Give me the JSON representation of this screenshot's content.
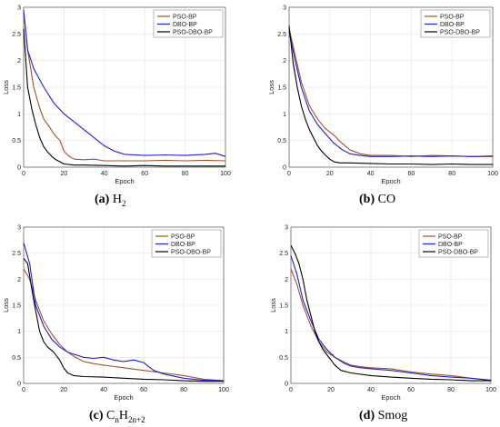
{
  "chart_data": [
    {
      "type": "line",
      "caption_letter": "(a)",
      "caption_base": "H",
      "caption_sub": "2",
      "xlabel": "Epoch",
      "ylabel": "Loss",
      "xlim": [
        0,
        100
      ],
      "ylim": [
        0,
        3
      ],
      "xticks": [
        0,
        20,
        40,
        60,
        80,
        100
      ],
      "yticks": [
        0,
        0.5,
        1,
        1.5,
        2,
        2.5,
        3
      ],
      "ytick_labels": [
        "0",
        "0.5",
        "1",
        "1.5",
        "2",
        "2.5",
        "3"
      ],
      "grid": true,
      "legend": "top-right",
      "colors": {
        "PSO-BP": "#a0522d",
        "DBO-BP": "#2020d0",
        "PSO-DBO-BP": "#000000"
      },
      "series": [
        {
          "name": "PSO-BP",
          "x": [
            0,
            2,
            5,
            8,
            10,
            12,
            15,
            18,
            20,
            22,
            25,
            30,
            35,
            40,
            50,
            60,
            70,
            80,
            90,
            100
          ],
          "values": [
            2.9,
            2.2,
            1.5,
            1.1,
            0.9,
            0.8,
            0.62,
            0.5,
            0.3,
            0.22,
            0.15,
            0.14,
            0.15,
            0.12,
            0.12,
            0.12,
            0.13,
            0.12,
            0.13,
            0.12
          ]
        },
        {
          "name": "DBO-BP",
          "x": [
            0,
            2,
            5,
            10,
            15,
            20,
            25,
            30,
            35,
            40,
            45,
            50,
            60,
            70,
            80,
            90,
            95,
            100
          ],
          "values": [
            2.95,
            2.2,
            1.85,
            1.5,
            1.2,
            1.0,
            0.85,
            0.7,
            0.55,
            0.4,
            0.3,
            0.24,
            0.22,
            0.23,
            0.22,
            0.24,
            0.26,
            0.2
          ]
        },
        {
          "name": "PSO-DBO-BP",
          "x": [
            0,
            2,
            4,
            6,
            8,
            10,
            12,
            14,
            16,
            18,
            20,
            25,
            30,
            40,
            50,
            60,
            70,
            80,
            90,
            100
          ],
          "values": [
            2.6,
            1.5,
            1.1,
            0.8,
            0.55,
            0.38,
            0.28,
            0.2,
            0.14,
            0.1,
            0.06,
            0.04,
            0.04,
            0.03,
            0.02,
            0.03,
            0.02,
            0.02,
            0.02,
            0.02
          ]
        }
      ]
    },
    {
      "type": "line",
      "caption_letter": "(b)",
      "caption_base": "CO",
      "caption_sub": "",
      "xlabel": "Epoch",
      "ylabel": "Loss",
      "xlim": [
        0,
        100
      ],
      "ylim": [
        0,
        3
      ],
      "xticks": [
        0,
        20,
        40,
        60,
        80,
        100
      ],
      "yticks": [
        0,
        0.5,
        1,
        1.5,
        2,
        2.5,
        3
      ],
      "ytick_labels": [
        "0",
        "0.5",
        "1",
        "1.5",
        "2",
        "2.5",
        "3"
      ],
      "grid": true,
      "legend": "top-right",
      "colors": {
        "PSO-BP": "#a0522d",
        "DBO-BP": "#2020d0",
        "PSO-DBO-BP": "#000000"
      },
      "series": [
        {
          "name": "PSO-BP",
          "x": [
            0,
            3,
            6,
            10,
            14,
            18,
            22,
            26,
            30,
            35,
            40,
            50,
            60,
            70,
            80,
            90,
            100
          ],
          "values": [
            2.6,
            2.1,
            1.6,
            1.15,
            0.9,
            0.72,
            0.6,
            0.45,
            0.32,
            0.25,
            0.22,
            0.22,
            0.2,
            0.22,
            0.21,
            0.2,
            0.2
          ]
        },
        {
          "name": "DBO-BP",
          "x": [
            0,
            3,
            6,
            10,
            14,
            18,
            22,
            26,
            30,
            35,
            40,
            50,
            60,
            70,
            80,
            90,
            100
          ],
          "values": [
            2.55,
            2.0,
            1.5,
            1.05,
            0.8,
            0.62,
            0.45,
            0.33,
            0.25,
            0.22,
            0.2,
            0.2,
            0.21,
            0.2,
            0.21,
            0.2,
            0.21
          ]
        },
        {
          "name": "PSO-DBO-BP",
          "x": [
            0,
            2,
            4,
            6,
            8,
            10,
            12,
            14,
            16,
            18,
            20,
            22,
            25,
            30,
            40,
            50,
            60,
            70,
            80,
            90,
            100
          ],
          "values": [
            2.65,
            1.95,
            1.5,
            1.15,
            0.9,
            0.7,
            0.55,
            0.4,
            0.3,
            0.22,
            0.15,
            0.1,
            0.08,
            0.08,
            0.07,
            0.06,
            0.06,
            0.05,
            0.06,
            0.05,
            0.05
          ]
        }
      ]
    },
    {
      "type": "line",
      "caption_letter": "(c)",
      "caption_base": "C",
      "caption_sub": "n",
      "caption_mid": "H",
      "caption_sub2": "2n+2",
      "xlabel": "Epoch",
      "ylabel": "Loss",
      "xlim": [
        0,
        100
      ],
      "ylim": [
        0,
        3
      ],
      "xticks": [
        0,
        20,
        40,
        60,
        80,
        100
      ],
      "yticks": [
        0,
        0.5,
        1,
        1.5,
        2,
        2.5,
        3
      ],
      "ytick_labels": [
        "0",
        "0.5",
        "1",
        "1.5",
        "2",
        "2.5",
        "3"
      ],
      "grid": true,
      "legend": "top-right",
      "colors": {
        "PSO-BP": "#a0522d",
        "DBO-BP": "#2020d0",
        "PSO-DBO-BP": "#000000"
      },
      "series": [
        {
          "name": "PSO-BP",
          "x": [
            0,
            3,
            6,
            10,
            14,
            18,
            22,
            26,
            30,
            35,
            40,
            50,
            60,
            70,
            80,
            90,
            100
          ],
          "values": [
            2.2,
            2.0,
            1.6,
            1.2,
            0.95,
            0.75,
            0.6,
            0.5,
            0.42,
            0.38,
            0.35,
            0.3,
            0.25,
            0.2,
            0.15,
            0.08,
            0.05
          ]
        },
        {
          "name": "DBO-BP",
          "x": [
            0,
            3,
            6,
            10,
            14,
            18,
            22,
            26,
            30,
            35,
            40,
            45,
            50,
            55,
            60,
            65,
            70,
            80,
            90,
            100
          ],
          "values": [
            2.7,
            2.3,
            1.5,
            1.1,
            0.85,
            0.7,
            0.6,
            0.55,
            0.5,
            0.48,
            0.5,
            0.45,
            0.42,
            0.45,
            0.4,
            0.25,
            0.18,
            0.1,
            0.06,
            0.05
          ]
        },
        {
          "name": "PSO-DBO-BP",
          "x": [
            0,
            2,
            5,
            8,
            10,
            12,
            15,
            18,
            20,
            22,
            25,
            30,
            40,
            50,
            60,
            70,
            80,
            90,
            100
          ],
          "values": [
            2.4,
            2.3,
            1.6,
            1.0,
            0.8,
            0.7,
            0.6,
            0.45,
            0.3,
            0.2,
            0.15,
            0.13,
            0.12,
            0.1,
            0.08,
            0.07,
            0.05,
            0.04,
            0.04
          ]
        }
      ]
    },
    {
      "type": "line",
      "caption_letter": "(d)",
      "caption_base": "Smog",
      "caption_sub": "",
      "xlabel": "Epoch",
      "ylabel": "Loss",
      "xlim": [
        0,
        100
      ],
      "ylim": [
        0,
        3
      ],
      "xticks": [
        0,
        20,
        40,
        60,
        80,
        100
      ],
      "yticks": [
        0,
        0.5,
        1,
        1.5,
        2,
        2.5,
        3
      ],
      "ytick_labels": [
        "0",
        "0.5",
        "1",
        "1.5",
        "2",
        "2.5",
        "3"
      ],
      "grid": true,
      "legend": "top-right",
      "colors": {
        "PSO-BP": "#a0522d",
        "DBO-BP": "#2020d0",
        "PSO-DBO-BP": "#000000"
      },
      "series": [
        {
          "name": "PSO-BP",
          "x": [
            0,
            3,
            6,
            10,
            14,
            18,
            22,
            26,
            30,
            35,
            40,
            50,
            60,
            70,
            80,
            90,
            100
          ],
          "values": [
            2.2,
            1.9,
            1.5,
            1.1,
            0.8,
            0.6,
            0.5,
            0.42,
            0.35,
            0.32,
            0.3,
            0.28,
            0.22,
            0.18,
            0.15,
            0.1,
            0.06
          ]
        },
        {
          "name": "DBO-BP",
          "x": [
            0,
            3,
            6,
            10,
            14,
            18,
            22,
            26,
            30,
            35,
            40,
            50,
            60,
            70,
            80,
            90,
            100
          ],
          "values": [
            2.45,
            2.1,
            1.6,
            1.2,
            0.85,
            0.65,
            0.5,
            0.4,
            0.33,
            0.3,
            0.28,
            0.25,
            0.2,
            0.15,
            0.12,
            0.1,
            0.06
          ]
        },
        {
          "name": "PSO-DBO-BP",
          "x": [
            0,
            2,
            4,
            6,
            8,
            10,
            12,
            14,
            16,
            18,
            20,
            22,
            25,
            30,
            40,
            50,
            60,
            70,
            80,
            90,
            100
          ],
          "values": [
            2.65,
            2.5,
            2.3,
            2.0,
            1.6,
            1.3,
            1.0,
            0.8,
            0.65,
            0.55,
            0.45,
            0.35,
            0.25,
            0.2,
            0.15,
            0.12,
            0.1,
            0.08,
            0.07,
            0.05,
            0.05
          ]
        }
      ]
    }
  ]
}
